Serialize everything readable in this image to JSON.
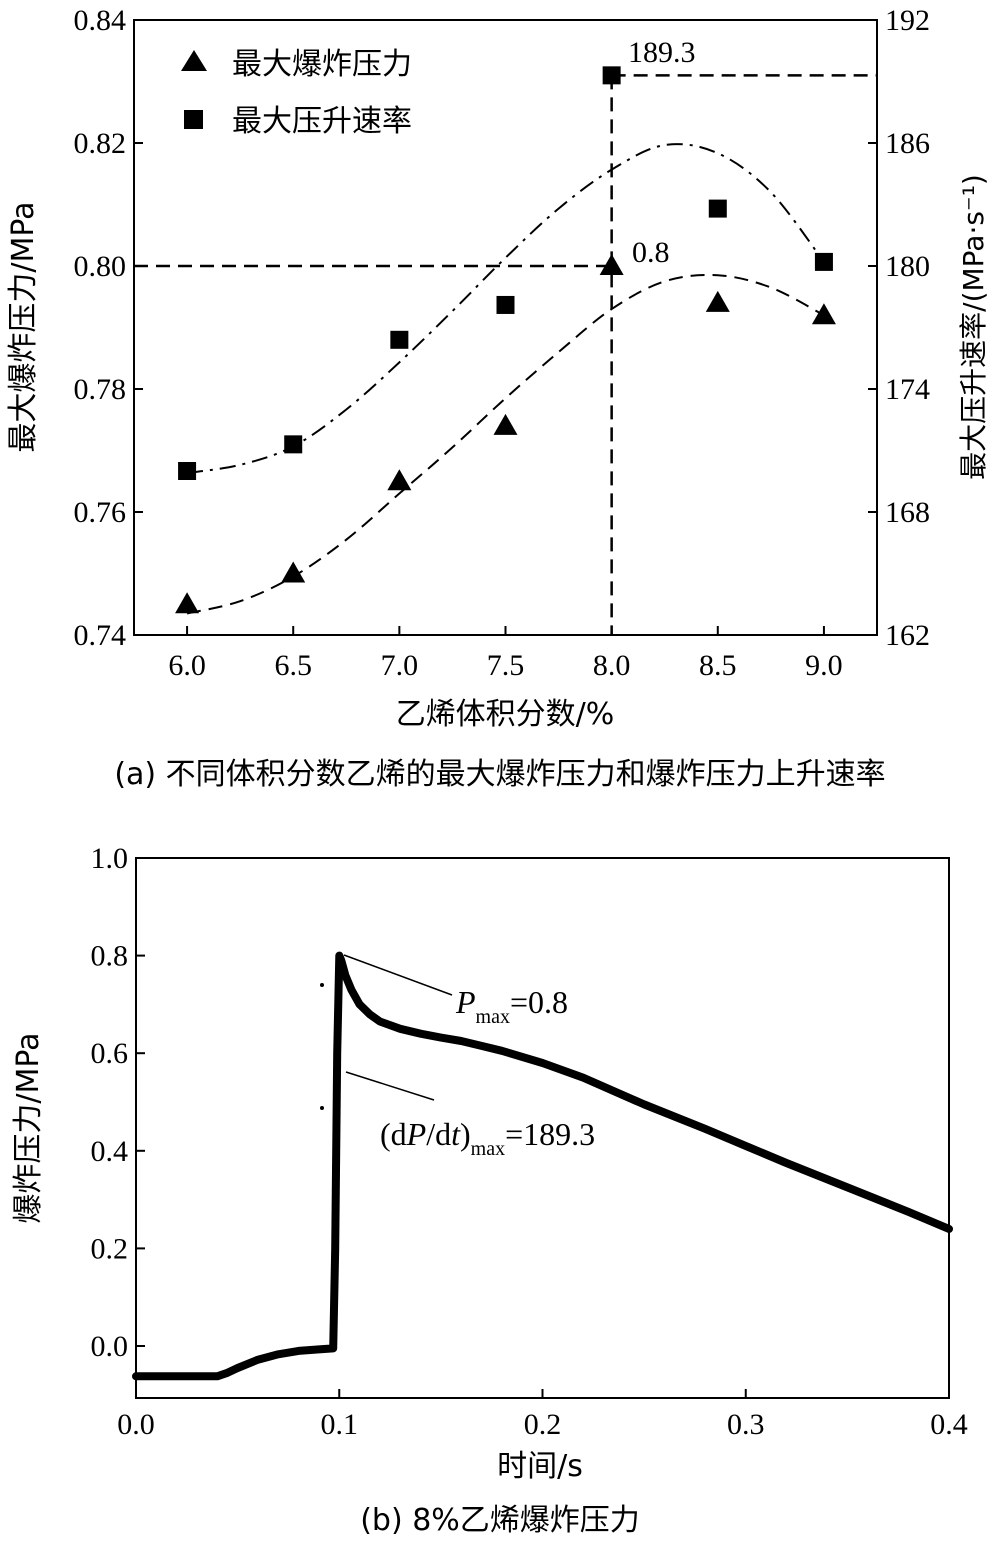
{
  "chart_data": [
    {
      "type": "scatter",
      "caption": "(a) 不同体积分数乙烯的最大爆炸压力和爆炸压力上升速率",
      "xlabel": "乙烯体积分数/%",
      "ylabel_left": "最大爆炸压力/MPa",
      "ylabel_right": "最大压升速率/(MPa·s⁻¹)",
      "xlim": [
        5.75,
        9.25
      ],
      "ylim_left": [
        0.74,
        0.84
      ],
      "ylim_right": [
        162,
        192
      ],
      "x_ticks": [
        "6.0",
        "6.5",
        "7.0",
        "7.5",
        "8.0",
        "8.5",
        "9.0"
      ],
      "y_left_ticks": [
        "0.74",
        "0.76",
        "0.78",
        "0.80",
        "0.82",
        "0.84"
      ],
      "y_right_ticks": [
        "162",
        "168",
        "174",
        "180",
        "186",
        "192"
      ],
      "legend_position": "top-left",
      "series": [
        {
          "name": "最大爆炸压力",
          "marker": "triangle",
          "axis": "left",
          "x": [
            6.0,
            6.5,
            7.0,
            7.5,
            8.0,
            8.5,
            9.0
          ],
          "y": [
            0.745,
            0.75,
            0.765,
            0.774,
            0.8,
            0.794,
            0.792
          ]
        },
        {
          "name": "最大压升速率",
          "marker": "square",
          "axis": "right",
          "x": [
            6.0,
            6.5,
            7.0,
            7.5,
            8.0,
            8.5,
            9.0
          ],
          "y": [
            170.0,
            171.3,
            176.4,
            178.1,
            189.3,
            182.8,
            180.2
          ]
        }
      ],
      "fit_curves": [
        {
          "axis": "left",
          "style": "dashed",
          "x": [
            6.0,
            6.25,
            6.5,
            6.75,
            7.0,
            7.25,
            7.5,
            7.75,
            8.0,
            8.25,
            8.5,
            8.75,
            9.0
          ],
          "y": [
            0.7435,
            0.7455,
            0.7495,
            0.7555,
            0.763,
            0.7705,
            0.7785,
            0.786,
            0.793,
            0.7975,
            0.7985,
            0.7965,
            0.792
          ]
        },
        {
          "axis": "right",
          "style": "dash-dot",
          "x": [
            6.0,
            6.25,
            6.5,
            6.75,
            7.0,
            7.25,
            7.5,
            7.75,
            8.0,
            8.25,
            8.5,
            8.75,
            9.0
          ],
          "y": [
            169.9,
            170.3,
            171.2,
            173.0,
            175.3,
            177.8,
            180.4,
            182.8,
            184.7,
            185.9,
            185.5,
            183.6,
            180.2
          ]
        }
      ],
      "annotations": [
        {
          "text": "189.3",
          "ref": "max rate at 8.0"
        },
        {
          "text": "0.8",
          "ref": "max pressure at 8.0"
        }
      ],
      "reference_lines": {
        "vertical_x": 8.0,
        "horizontal_left_y": 0.8,
        "horizontal_right_y": 189.3
      }
    },
    {
      "type": "line",
      "caption": "(b) 8%乙烯爆炸压力",
      "xlabel": "时间/s",
      "ylabel": "爆炸压力/MPa",
      "xlim": [
        0.0,
        0.4
      ],
      "ylim": [
        -0.1,
        1.0
      ],
      "x_ticks": [
        "0.0",
        "0.1",
        "0.2",
        "0.3",
        "0.4"
      ],
      "y_ticks": [
        "0.0",
        "0.2",
        "0.4",
        "0.6",
        "0.8",
        "1.0"
      ],
      "series": [
        {
          "x": [
            0.0,
            0.02,
            0.04,
            0.045,
            0.05,
            0.06,
            0.07,
            0.08,
            0.09,
            0.097,
            0.098,
            0.099,
            0.1,
            0.101,
            0.103,
            0.106,
            0.11,
            0.115,
            0.12,
            0.13,
            0.14,
            0.15,
            0.16,
            0.17,
            0.18,
            0.2,
            0.22,
            0.25,
            0.28,
            0.3,
            0.32,
            0.35,
            0.38,
            0.4
          ],
          "y": [
            -0.062,
            -0.062,
            -0.062,
            -0.055,
            -0.045,
            -0.028,
            -0.017,
            -0.01,
            -0.007,
            -0.005,
            0.2,
            0.6,
            0.8,
            0.79,
            0.76,
            0.73,
            0.7,
            0.68,
            0.665,
            0.65,
            0.64,
            0.632,
            0.625,
            0.615,
            0.605,
            0.58,
            0.55,
            0.495,
            0.445,
            0.41,
            0.375,
            0.325,
            0.275,
            0.24
          ]
        }
      ],
      "annotations": [
        {
          "label": "P",
          "sub": "max",
          "suffix": "=0.8"
        },
        {
          "prefix": "(d",
          "label": "P",
          "mid": "/d",
          "label2": "t",
          "close": ")",
          "sub": "max",
          "suffix": "=189.3"
        }
      ]
    }
  ],
  "legend": {
    "triangle_label": "最大爆炸压力",
    "square_label": "最大压升速率"
  }
}
